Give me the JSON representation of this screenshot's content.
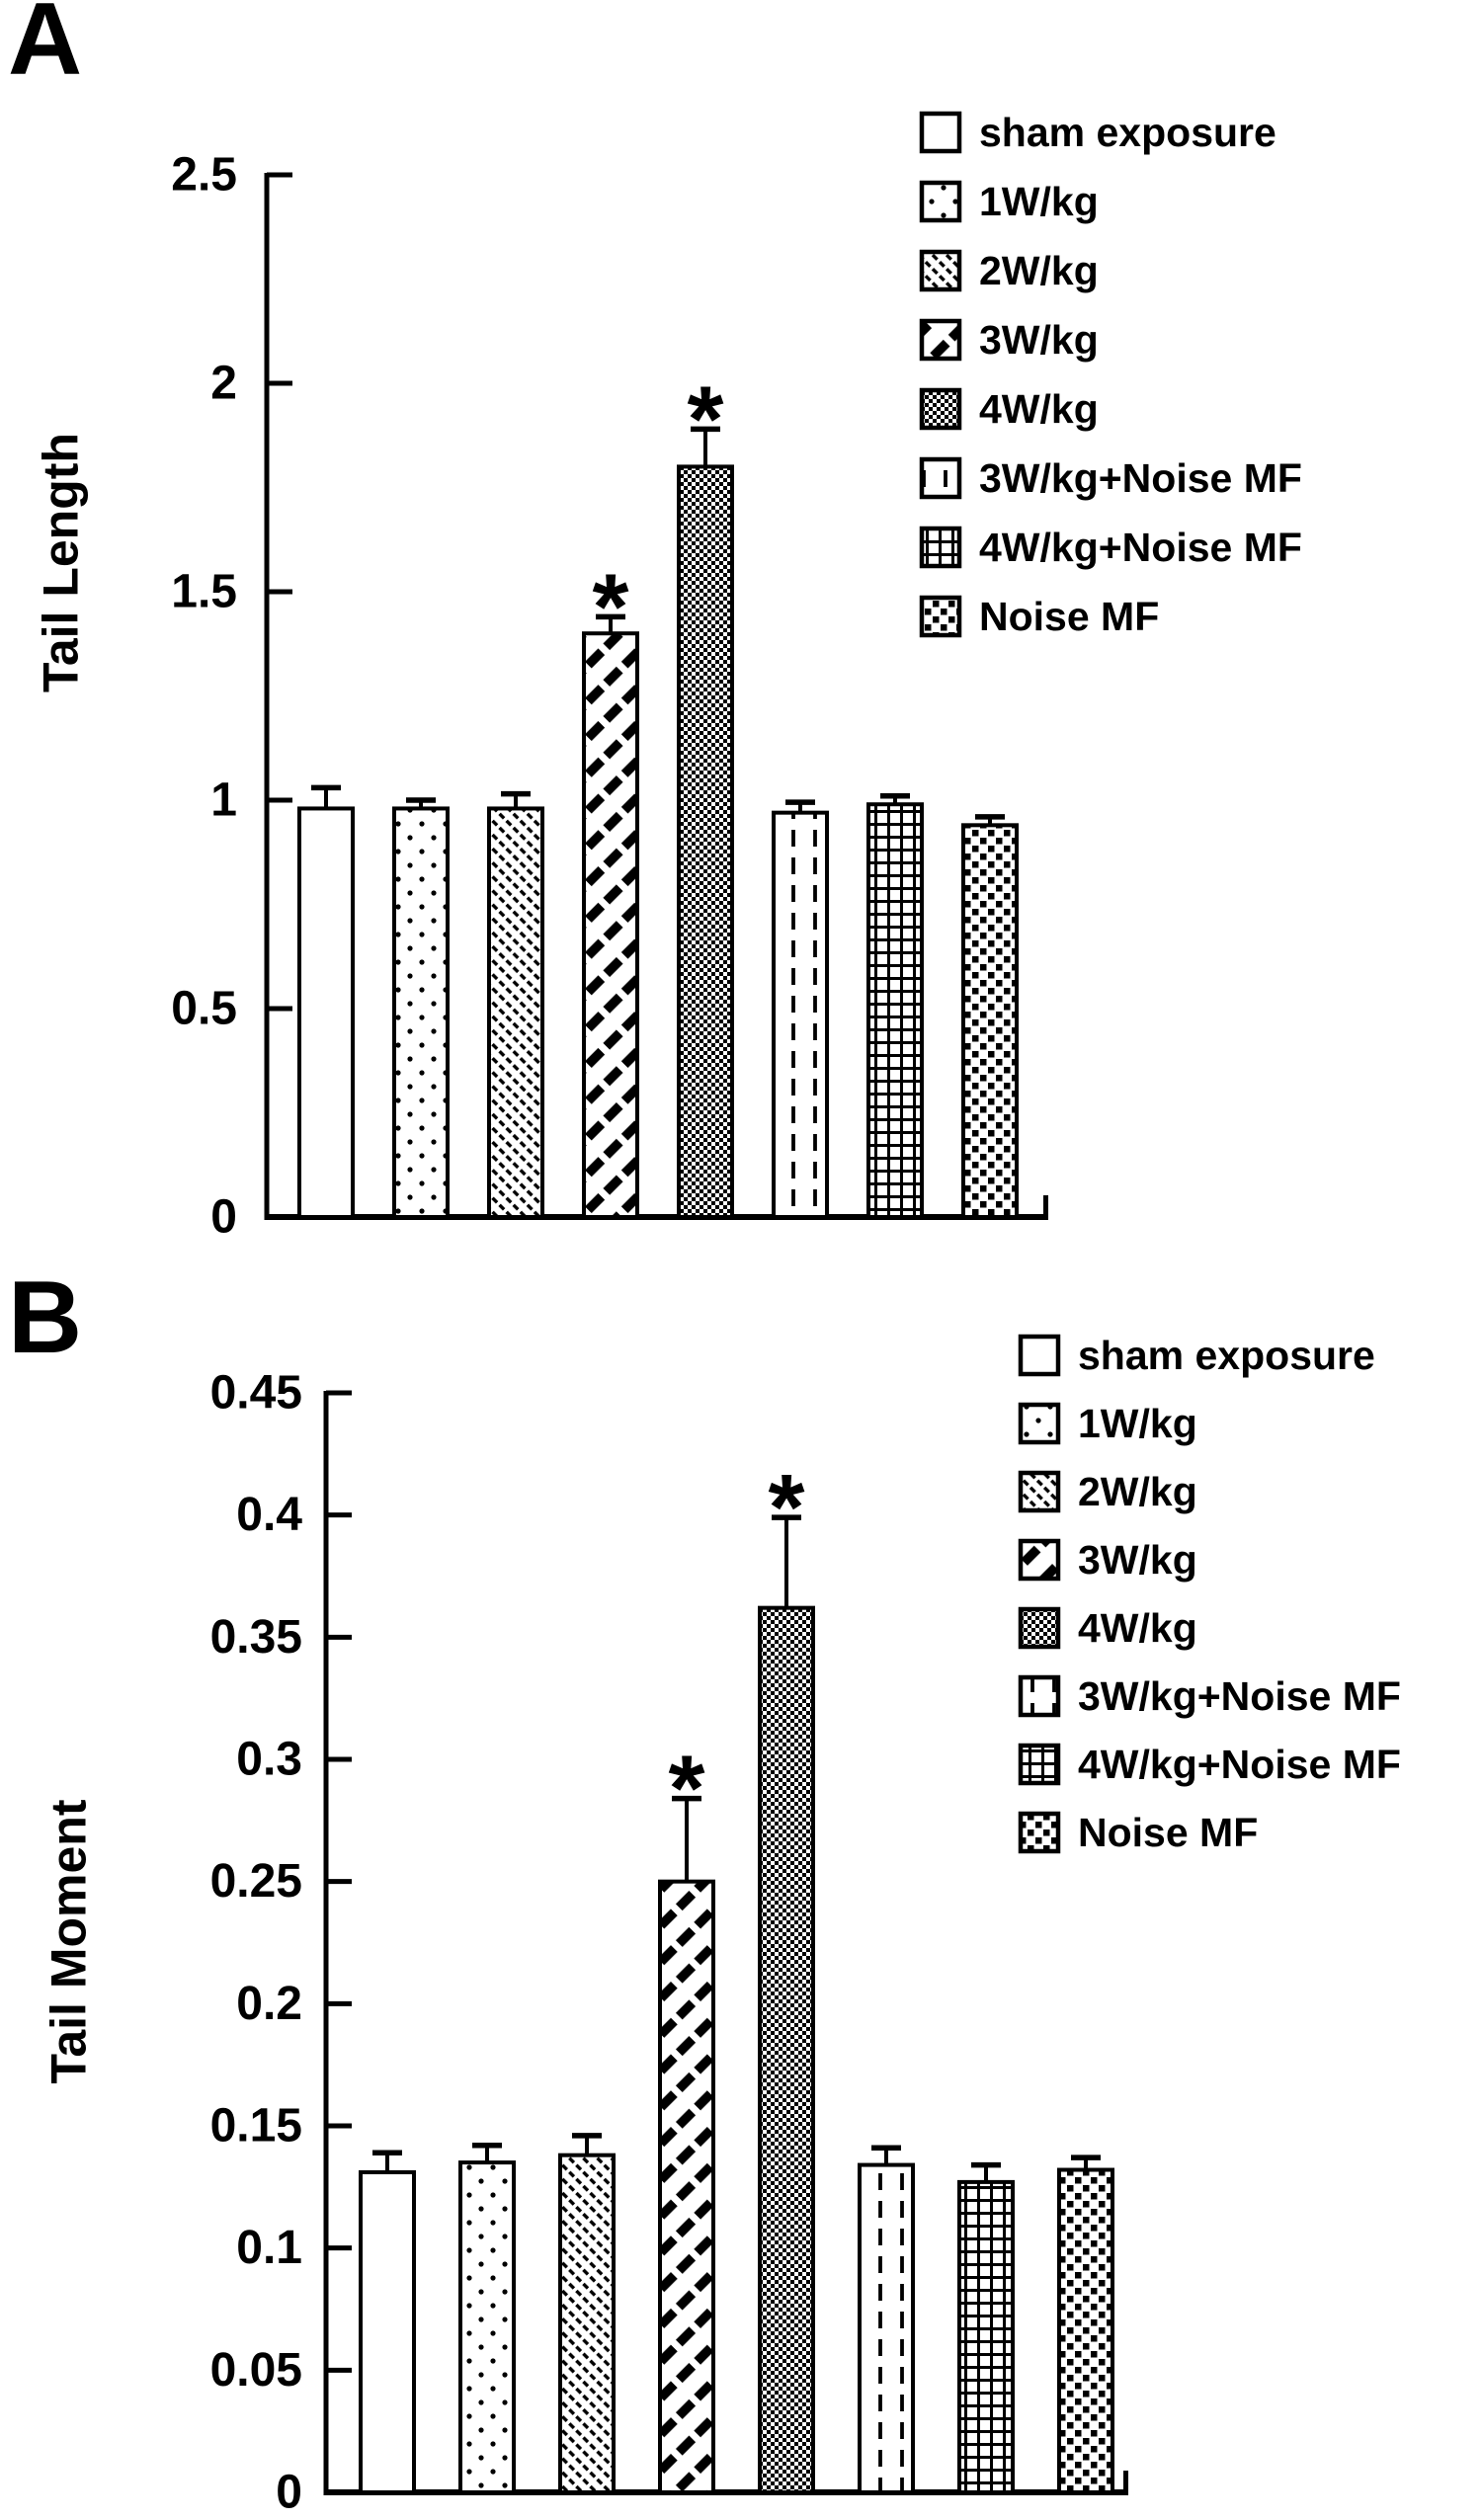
{
  "figure": {
    "background": "#ffffff",
    "ink_color": "#000000",
    "sig_marker": "*"
  },
  "legend_items": [
    {
      "label": "sham exposure",
      "pattern": "plain-white"
    },
    {
      "label": "1W/kg",
      "pattern": "sparse-dots"
    },
    {
      "label": "2W/kg",
      "pattern": "thin-diagonal-hatch"
    },
    {
      "label": "3W/kg",
      "pattern": "wide-diagonal-hatch"
    },
    {
      "label": "4W/kg",
      "pattern": "fine-checkerboard"
    },
    {
      "label": "3W/kg+Noise MF",
      "pattern": "vertical-dashes"
    },
    {
      "label": "4W/kg+Noise MF",
      "pattern": "grid-crosshatch"
    },
    {
      "label": "Noise MF",
      "pattern": "coarse-checkerboard"
    }
  ],
  "chart_data": [
    {
      "type": "bar",
      "panel": "A",
      "title": "",
      "xlabel": "",
      "ylabel": "Tail Length",
      "ylim": [
        0,
        2.5
      ],
      "ytick_step": 0.5,
      "yticks": [
        "2.5",
        "2",
        "1.5",
        "1",
        "0.5",
        "0"
      ],
      "grid": false,
      "legend_position": "top-right",
      "categories": [
        "sham exposure",
        "1W/kg",
        "2W/kg",
        "3W/kg",
        "4W/kg",
        "3W/kg+Noise MF",
        "4W/kg+Noise MF",
        "Noise MF"
      ],
      "values": [
        0.98,
        0.98,
        0.98,
        1.4,
        1.8,
        0.97,
        0.99,
        0.94
      ],
      "errors": [
        0.05,
        0.02,
        0.035,
        0.04,
        0.09,
        0.025,
        0.02,
        0.02
      ],
      "significant": [
        false,
        false,
        false,
        true,
        true,
        false,
        false,
        false
      ],
      "sig_marker": "*"
    },
    {
      "type": "bar",
      "panel": "B",
      "title": "",
      "xlabel": "",
      "ylabel": "Tail Moment",
      "ylim": [
        0,
        0.45
      ],
      "ytick_step": 0.05,
      "yticks": [
        "0.45",
        "0.4",
        "0.35",
        "0.3",
        "0.25",
        "0.2",
        "0.15",
        "0.1",
        "0.05",
        "0"
      ],
      "grid": false,
      "legend_position": "top-right",
      "categories": [
        "sham exposure",
        "1W/kg",
        "2W/kg",
        "3W/kg",
        "4W/kg",
        "3W/kg+Noise MF",
        "4W/kg+Noise MF",
        "Noise MF"
      ],
      "values": [
        0.131,
        0.135,
        0.138,
        0.25,
        0.362,
        0.134,
        0.127,
        0.132
      ],
      "errors": [
        0.008,
        0.007,
        0.008,
        0.034,
        0.037,
        0.007,
        0.007,
        0.005
      ],
      "significant": [
        false,
        false,
        false,
        true,
        true,
        false,
        false,
        false
      ],
      "sig_marker": "*"
    }
  ]
}
